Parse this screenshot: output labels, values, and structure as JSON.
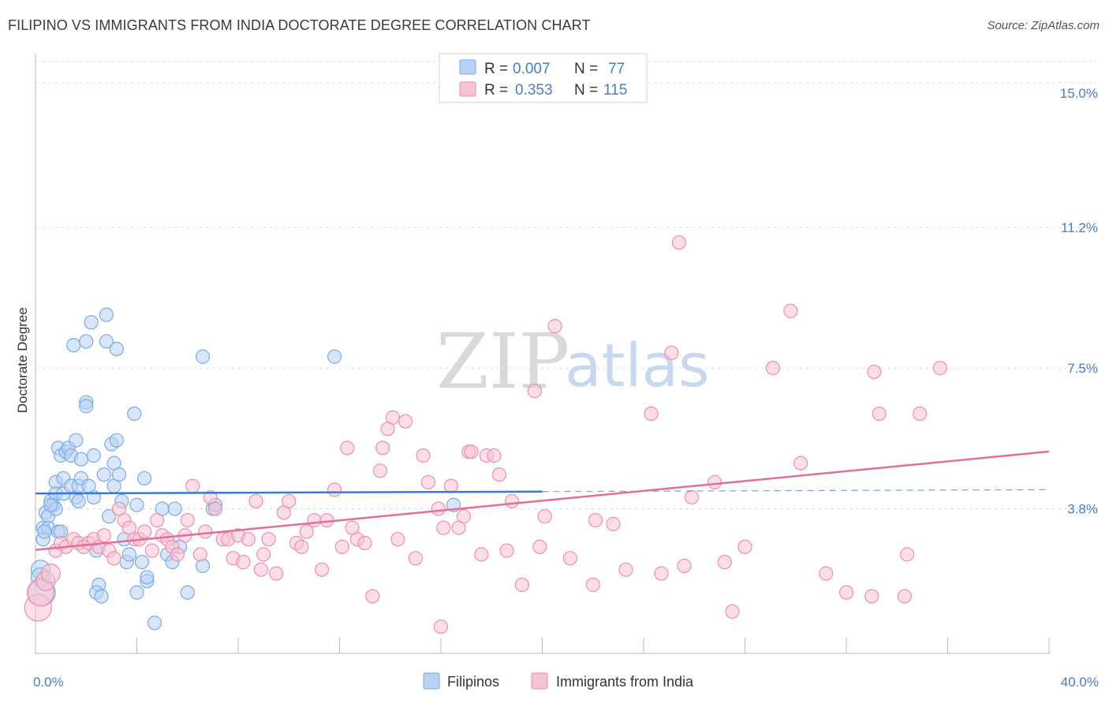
{
  "header": {
    "title": "FILIPINO VS IMMIGRANTS FROM INDIA DOCTORATE DEGREE CORRELATION CHART",
    "source": "Source: ZipAtlas.com"
  },
  "watermark": {
    "zip": "ZIP",
    "atlas": "atlas"
  },
  "chart_data": {
    "type": "scatter",
    "title": "FILIPINO VS IMMIGRANTS FROM INDIA DOCTORATE DEGREE CORRELATION CHART",
    "xlabel": "",
    "ylabel": "Doctorate Degree",
    "xlim": [
      0,
      40
    ],
    "ylim": [
      0,
      15.6
    ],
    "x_tick_labels": [
      {
        "value": 0,
        "label": "0.0%"
      },
      {
        "value": 40,
        "label": "40.0%"
      }
    ],
    "y_tick_labels": [
      {
        "value": 3.8,
        "label": "3.8%"
      },
      {
        "value": 7.5,
        "label": "7.5%"
      },
      {
        "value": 11.2,
        "label": "11.2%"
      },
      {
        "value": 15.0,
        "label": "15.0%"
      }
    ],
    "x_minor_ticks": [
      0,
      4,
      8,
      12,
      16,
      20,
      24,
      28,
      32,
      36,
      40
    ],
    "grid": true,
    "legend": [
      {
        "series": "Filipinos",
        "r_label": "R =",
        "r_value": "0.007",
        "n_label": "N =",
        "n_value": "77",
        "color": "#7aaae8",
        "fill": "#b8d2f3"
      },
      {
        "series": "Immigrants from India",
        "r_label": "R =",
        "r_value": "0.353",
        "n_label": "N =",
        "n_value": "115",
        "color": "#ec8fab",
        "fill": "#f7c3d3"
      }
    ],
    "series": [
      {
        "name": "Filipinos",
        "color": "#7aaae8",
        "fill": "#b8d2f3",
        "trend_color": "#3a78d4",
        "trend_solid_to_x": 20,
        "points": [
          [
            0.2,
            2.2
          ],
          [
            0.2,
            2.0
          ],
          [
            0.3,
            3.0
          ],
          [
            0.3,
            3.3
          ],
          [
            0.4,
            3.7
          ],
          [
            0.5,
            3.6
          ],
          [
            0.5,
            3.3
          ],
          [
            0.6,
            4.0
          ],
          [
            0.7,
            3.9
          ],
          [
            0.8,
            4.5
          ],
          [
            0.8,
            3.8
          ],
          [
            0.8,
            4.2
          ],
          [
            0.9,
            3.2
          ],
          [
            0.9,
            5.4
          ],
          [
            1.0,
            5.2
          ],
          [
            1.1,
            4.2
          ],
          [
            1.1,
            4.6
          ],
          [
            1.2,
            5.3
          ],
          [
            1.3,
            5.4
          ],
          [
            1.4,
            5.2
          ],
          [
            1.4,
            4.4
          ],
          [
            1.5,
            8.1
          ],
          [
            1.6,
            5.6
          ],
          [
            1.6,
            4.1
          ],
          [
            1.7,
            4.4
          ],
          [
            1.7,
            4.0
          ],
          [
            1.8,
            4.6
          ],
          [
            1.8,
            5.1
          ],
          [
            2.0,
            8.2
          ],
          [
            2.0,
            6.6
          ],
          [
            2.0,
            6.5
          ],
          [
            2.1,
            4.4
          ],
          [
            2.2,
            8.7
          ],
          [
            2.3,
            5.2
          ],
          [
            2.4,
            2.7
          ],
          [
            2.5,
            1.8
          ],
          [
            2.4,
            1.6
          ],
          [
            2.6,
            1.5
          ],
          [
            2.7,
            4.7
          ],
          [
            2.8,
            8.2
          ],
          [
            2.8,
            8.9
          ],
          [
            2.9,
            3.6
          ],
          [
            3.0,
            5.5
          ],
          [
            3.1,
            4.4
          ],
          [
            3.1,
            5.0
          ],
          [
            3.2,
            8.0
          ],
          [
            3.2,
            5.6
          ],
          [
            3.3,
            4.7
          ],
          [
            3.4,
            4.0
          ],
          [
            3.5,
            3.0
          ],
          [
            3.6,
            2.4
          ],
          [
            3.7,
            2.6
          ],
          [
            3.9,
            6.3
          ],
          [
            4.0,
            1.6
          ],
          [
            4.2,
            2.4
          ],
          [
            4.3,
            4.6
          ],
          [
            4.4,
            1.9
          ],
          [
            4.4,
            2.0
          ],
          [
            4.7,
            0.8
          ],
          [
            5.0,
            3.8
          ],
          [
            5.2,
            2.6
          ],
          [
            5.4,
            2.4
          ],
          [
            5.5,
            3.8
          ],
          [
            5.7,
            2.8
          ],
          [
            6.0,
            1.6
          ],
          [
            6.6,
            2.3
          ],
          [
            6.6,
            7.8
          ],
          [
            7.0,
            3.8
          ],
          [
            7.1,
            3.9
          ],
          [
            11.8,
            7.8
          ],
          [
            16.5,
            3.9
          ],
          [
            0.25,
            1.6
          ],
          [
            0.35,
            3.2
          ],
          [
            0.6,
            3.9
          ],
          [
            1.0,
            3.2
          ],
          [
            2.3,
            4.1
          ],
          [
            4.0,
            3.9
          ]
        ]
      },
      {
        "name": "Immigrants from India",
        "color": "#ec8fab",
        "fill": "#f7c3d3",
        "trend_color": "#e0709a",
        "points": [
          [
            0.1,
            1.2
          ],
          [
            0.2,
            1.6
          ],
          [
            0.4,
            1.9
          ],
          [
            0.6,
            2.1
          ],
          [
            0.8,
            2.7
          ],
          [
            1.0,
            2.9
          ],
          [
            1.2,
            2.8
          ],
          [
            1.5,
            3.0
          ],
          [
            1.7,
            2.9
          ],
          [
            1.9,
            2.8
          ],
          [
            2.1,
            2.9
          ],
          [
            2.3,
            3.0
          ],
          [
            2.5,
            2.8
          ],
          [
            2.7,
            3.1
          ],
          [
            2.9,
            2.7
          ],
          [
            3.1,
            2.5
          ],
          [
            3.3,
            3.8
          ],
          [
            3.5,
            3.5
          ],
          [
            3.7,
            3.3
          ],
          [
            3.9,
            3.0
          ],
          [
            4.1,
            3.0
          ],
          [
            4.3,
            3.2
          ],
          [
            4.6,
            2.7
          ],
          [
            4.8,
            3.5
          ],
          [
            5.0,
            3.1
          ],
          [
            5.2,
            3.0
          ],
          [
            5.4,
            2.8
          ],
          [
            5.6,
            2.6
          ],
          [
            5.9,
            3.1
          ],
          [
            6.0,
            3.5
          ],
          [
            6.2,
            4.4
          ],
          [
            6.5,
            2.6
          ],
          [
            6.7,
            3.2
          ],
          [
            6.9,
            4.1
          ],
          [
            7.1,
            3.8
          ],
          [
            7.4,
            3.0
          ],
          [
            7.6,
            3.0
          ],
          [
            7.8,
            2.5
          ],
          [
            8.0,
            3.1
          ],
          [
            8.2,
            2.4
          ],
          [
            8.4,
            3.0
          ],
          [
            8.7,
            4.0
          ],
          [
            8.9,
            2.2
          ],
          [
            9.0,
            2.6
          ],
          [
            9.2,
            3.0
          ],
          [
            9.5,
            2.1
          ],
          [
            9.8,
            3.7
          ],
          [
            10.0,
            4.0
          ],
          [
            10.3,
            2.9
          ],
          [
            10.5,
            2.8
          ],
          [
            10.7,
            3.2
          ],
          [
            11.0,
            3.5
          ],
          [
            11.3,
            2.2
          ],
          [
            11.5,
            3.5
          ],
          [
            11.8,
            4.3
          ],
          [
            12.1,
            2.8
          ],
          [
            12.3,
            5.4
          ],
          [
            12.5,
            3.3
          ],
          [
            12.7,
            3.0
          ],
          [
            13.0,
            2.9
          ],
          [
            13.3,
            1.5
          ],
          [
            13.6,
            4.8
          ],
          [
            13.7,
            5.4
          ],
          [
            13.9,
            5.9
          ],
          [
            14.1,
            6.2
          ],
          [
            14.3,
            3.0
          ],
          [
            14.6,
            6.1
          ],
          [
            15.0,
            2.5
          ],
          [
            15.3,
            5.2
          ],
          [
            15.5,
            4.5
          ],
          [
            15.9,
            3.8
          ],
          [
            16.1,
            3.3
          ],
          [
            16.4,
            4.4
          ],
          [
            16.7,
            3.3
          ],
          [
            16.9,
            3.6
          ],
          [
            17.1,
            5.3
          ],
          [
            17.2,
            5.3
          ],
          [
            17.6,
            2.6
          ],
          [
            17.8,
            5.2
          ],
          [
            18.1,
            5.2
          ],
          [
            18.3,
            4.7
          ],
          [
            18.6,
            2.7
          ],
          [
            18.8,
            4.0
          ],
          [
            19.2,
            1.8
          ],
          [
            19.7,
            6.9
          ],
          [
            19.9,
            2.8
          ],
          [
            20.1,
            3.6
          ],
          [
            20.5,
            8.6
          ],
          [
            21.1,
            2.5
          ],
          [
            22.0,
            1.8
          ],
          [
            22.1,
            3.5
          ],
          [
            22.8,
            3.4
          ],
          [
            23.3,
            2.2
          ],
          [
            24.3,
            6.3
          ],
          [
            24.7,
            2.1
          ],
          [
            25.1,
            7.9
          ],
          [
            25.4,
            10.8
          ],
          [
            25.6,
            2.3
          ],
          [
            25.9,
            4.1
          ],
          [
            26.8,
            4.5
          ],
          [
            27.2,
            2.4
          ],
          [
            27.5,
            1.1
          ],
          [
            28.0,
            2.8
          ],
          [
            29.1,
            7.5
          ],
          [
            29.8,
            9.0
          ],
          [
            30.2,
            5.0
          ],
          [
            31.2,
            2.1
          ],
          [
            32.0,
            1.6
          ],
          [
            33.0,
            1.5
          ],
          [
            33.1,
            7.4
          ],
          [
            33.3,
            6.3
          ],
          [
            34.3,
            1.5
          ],
          [
            34.4,
            2.6
          ],
          [
            34.9,
            6.3
          ],
          [
            35.7,
            7.5
          ],
          [
            16.0,
            0.7
          ]
        ]
      }
    ]
  },
  "bottom_legend": [
    {
      "label": "Filipinos",
      "fill": "#b8d2f3",
      "stroke": "#7aaae8"
    },
    {
      "label": "Immigrants from India",
      "fill": "#f7c3d3",
      "stroke": "#ec8fab"
    }
  ]
}
